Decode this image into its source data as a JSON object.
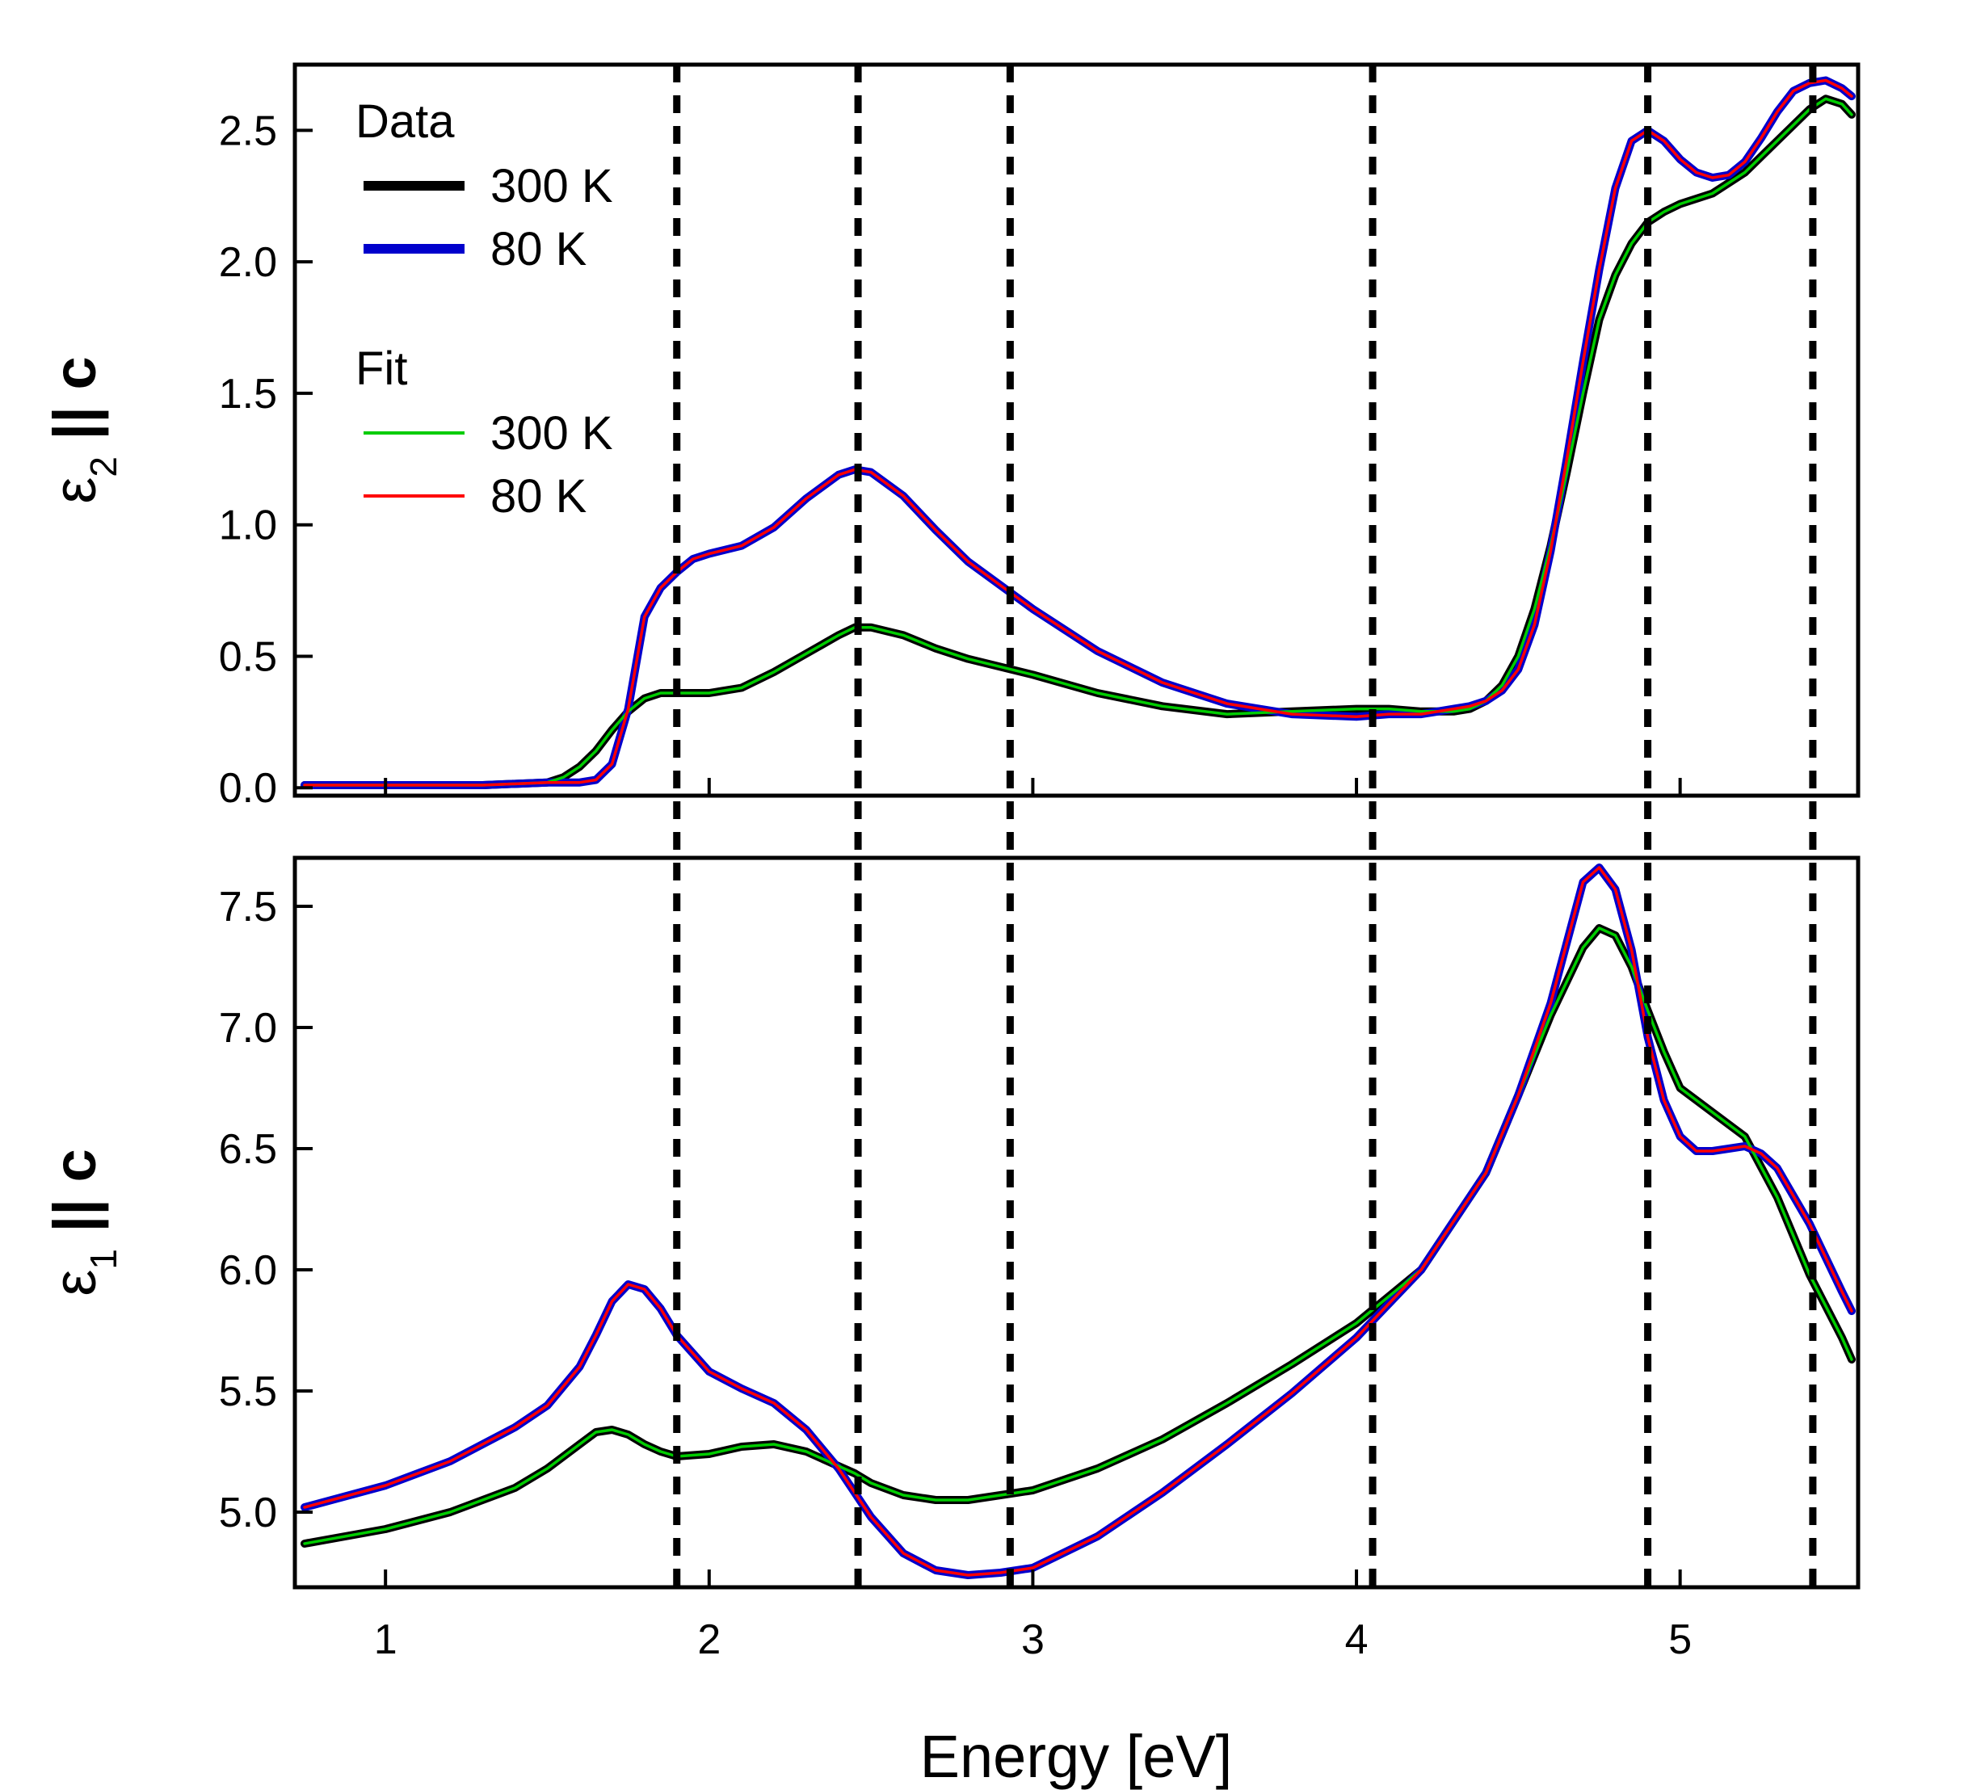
{
  "chart_data": [
    {
      "id": "top",
      "type": "line",
      "ylabel_symbol": "ε",
      "ylabel_sub": "2",
      "ylabel_rest": " || c",
      "xlim": [
        0.72,
        5.55
      ],
      "ylim": [
        -0.03,
        2.75
      ],
      "xticks": [
        1,
        2,
        3,
        4,
        5
      ],
      "xtick_labels_shown": false,
      "yticks": [
        0.0,
        0.5,
        1.0,
        1.5,
        2.0,
        2.5
      ],
      "ytick_labels": [
        "0.0",
        "0.5",
        "1.0",
        "1.5",
        "2.0",
        "2.5"
      ],
      "grid": false,
      "legend": {
        "placement": "top-left",
        "groups": [
          {
            "title": "Data",
            "entries": [
              {
                "label": "300 K",
                "color": "#000000",
                "style": "thick"
              },
              {
                "label": "80 K",
                "color": "#0000cc",
                "style": "thick"
              }
            ]
          },
          {
            "title": "Fit",
            "entries": [
              {
                "label": "300 K",
                "color": "#00cc00",
                "style": "thin"
              },
              {
                "label": "80 K",
                "color": "#ff0000",
                "style": "thin"
              }
            ]
          }
        ]
      },
      "series": [
        {
          "name": "Data 300 K",
          "color": "#000000",
          "role": "data",
          "x": [
            0.75,
            1.0,
            1.3,
            1.5,
            1.55,
            1.6,
            1.65,
            1.7,
            1.75,
            1.8,
            1.85,
            1.9,
            2.0,
            2.1,
            2.2,
            2.3,
            2.4,
            2.45,
            2.5,
            2.6,
            2.7,
            2.8,
            3.0,
            3.2,
            3.4,
            3.6,
            3.8,
            4.0,
            4.1,
            4.2,
            4.3,
            4.35,
            4.4,
            4.45,
            4.5,
            4.55,
            4.6,
            4.65,
            4.7,
            4.75,
            4.8,
            4.85,
            4.9,
            4.95,
            5.0,
            5.1,
            5.2,
            5.3,
            5.4,
            5.45,
            5.5,
            5.53
          ],
          "y": [
            0.01,
            0.01,
            0.01,
            0.02,
            0.04,
            0.08,
            0.14,
            0.22,
            0.29,
            0.34,
            0.36,
            0.36,
            0.36,
            0.38,
            0.44,
            0.51,
            0.58,
            0.61,
            0.61,
            0.58,
            0.53,
            0.49,
            0.43,
            0.36,
            0.31,
            0.28,
            0.29,
            0.3,
            0.3,
            0.29,
            0.29,
            0.3,
            0.33,
            0.39,
            0.5,
            0.68,
            0.92,
            1.2,
            1.5,
            1.78,
            1.95,
            2.07,
            2.15,
            2.19,
            2.22,
            2.26,
            2.34,
            2.46,
            2.58,
            2.62,
            2.6,
            2.56
          ]
        },
        {
          "name": "Data 80 K",
          "color": "#0000cc",
          "role": "data",
          "x": [
            0.75,
            1.0,
            1.3,
            1.5,
            1.55,
            1.6,
            1.65,
            1.7,
            1.75,
            1.8,
            1.85,
            1.9,
            1.95,
            2.0,
            2.1,
            2.2,
            2.3,
            2.4,
            2.45,
            2.5,
            2.6,
            2.7,
            2.8,
            3.0,
            3.2,
            3.4,
            3.6,
            3.8,
            4.0,
            4.1,
            4.2,
            4.3,
            4.35,
            4.4,
            4.45,
            4.5,
            4.55,
            4.6,
            4.65,
            4.7,
            4.75,
            4.8,
            4.85,
            4.9,
            4.95,
            5.0,
            5.05,
            5.1,
            5.15,
            5.2,
            5.25,
            5.3,
            5.35,
            5.4,
            5.45,
            5.5,
            5.53
          ],
          "y": [
            0.01,
            0.01,
            0.01,
            0.02,
            0.02,
            0.02,
            0.03,
            0.09,
            0.3,
            0.65,
            0.76,
            0.82,
            0.87,
            0.89,
            0.92,
            0.99,
            1.1,
            1.19,
            1.21,
            1.2,
            1.11,
            0.98,
            0.86,
            0.68,
            0.52,
            0.4,
            0.32,
            0.28,
            0.27,
            0.28,
            0.28,
            0.3,
            0.31,
            0.33,
            0.37,
            0.45,
            0.62,
            0.9,
            1.25,
            1.62,
            1.97,
            2.28,
            2.46,
            2.5,
            2.46,
            2.39,
            2.34,
            2.32,
            2.33,
            2.38,
            2.47,
            2.57,
            2.65,
            2.68,
            2.69,
            2.66,
            2.63
          ]
        },
        {
          "name": "Fit 300 K",
          "color": "#00cc00",
          "role": "fit",
          "x": [
            0.75,
            1.0,
            1.3,
            1.5,
            1.55,
            1.6,
            1.65,
            1.7,
            1.75,
            1.8,
            1.85,
            1.9,
            2.0,
            2.1,
            2.2,
            2.3,
            2.4,
            2.45,
            2.5,
            2.6,
            2.7,
            2.8,
            3.0,
            3.2,
            3.4,
            3.6,
            3.8,
            4.0,
            4.1,
            4.2,
            4.3,
            4.35,
            4.4,
            4.45,
            4.5,
            4.55,
            4.6,
            4.65,
            4.7,
            4.75,
            4.8,
            4.85,
            4.9,
            4.95,
            5.0,
            5.1,
            5.2,
            5.3,
            5.4,
            5.45,
            5.5,
            5.53
          ],
          "y": [
            0.01,
            0.01,
            0.01,
            0.02,
            0.04,
            0.08,
            0.14,
            0.22,
            0.29,
            0.34,
            0.36,
            0.36,
            0.36,
            0.38,
            0.44,
            0.51,
            0.58,
            0.61,
            0.61,
            0.58,
            0.53,
            0.49,
            0.43,
            0.36,
            0.31,
            0.28,
            0.29,
            0.3,
            0.3,
            0.29,
            0.29,
            0.3,
            0.33,
            0.39,
            0.5,
            0.68,
            0.92,
            1.2,
            1.5,
            1.78,
            1.95,
            2.07,
            2.15,
            2.19,
            2.22,
            2.26,
            2.34,
            2.46,
            2.58,
            2.62,
            2.6,
            2.56
          ]
        },
        {
          "name": "Fit 80 K",
          "color": "#ff0000",
          "role": "fit",
          "x": [
            0.75,
            1.0,
            1.3,
            1.5,
            1.55,
            1.6,
            1.65,
            1.7,
            1.75,
            1.8,
            1.85,
            1.9,
            1.95,
            2.0,
            2.1,
            2.2,
            2.3,
            2.4,
            2.45,
            2.5,
            2.6,
            2.7,
            2.8,
            3.0,
            3.2,
            3.4,
            3.6,
            3.8,
            4.0,
            4.1,
            4.2,
            4.3,
            4.35,
            4.4,
            4.45,
            4.5,
            4.55,
            4.6,
            4.65,
            4.7,
            4.75,
            4.8,
            4.85,
            4.9,
            4.95,
            5.0,
            5.05,
            5.1,
            5.15,
            5.2,
            5.25,
            5.3,
            5.35,
            5.4,
            5.45,
            5.5,
            5.53
          ],
          "y": [
            0.01,
            0.01,
            0.01,
            0.02,
            0.02,
            0.02,
            0.03,
            0.09,
            0.3,
            0.65,
            0.76,
            0.82,
            0.87,
            0.89,
            0.92,
            0.99,
            1.1,
            1.19,
            1.21,
            1.2,
            1.11,
            0.98,
            0.86,
            0.68,
            0.52,
            0.4,
            0.32,
            0.28,
            0.27,
            0.28,
            0.28,
            0.3,
            0.31,
            0.33,
            0.37,
            0.45,
            0.62,
            0.9,
            1.25,
            1.62,
            1.97,
            2.28,
            2.46,
            2.5,
            2.46,
            2.39,
            2.34,
            2.32,
            2.33,
            2.38,
            2.47,
            2.57,
            2.65,
            2.68,
            2.69,
            2.66,
            2.63
          ]
        }
      ]
    },
    {
      "id": "bottom",
      "type": "line",
      "xlabel": "Energy [eV]",
      "ylabel_symbol": "ε",
      "ylabel_sub": "1",
      "ylabel_rest": " || c",
      "xlim": [
        0.72,
        5.55
      ],
      "ylim": [
        4.69,
        7.7
      ],
      "xticks": [
        1,
        2,
        3,
        4,
        5
      ],
      "xtick_labels": [
        "1",
        "2",
        "3",
        "4",
        "5"
      ],
      "yticks": [
        5.0,
        5.5,
        6.0,
        6.5,
        7.0,
        7.5
      ],
      "ytick_labels": [
        "5.0",
        "5.5",
        "6.0",
        "6.5",
        "7.0",
        "7.5"
      ],
      "grid": false,
      "series": [
        {
          "name": "Data 300 K",
          "color": "#000000",
          "role": "data",
          "x": [
            0.75,
            1.0,
            1.2,
            1.4,
            1.5,
            1.6,
            1.65,
            1.7,
            1.75,
            1.8,
            1.85,
            1.9,
            2.0,
            2.1,
            2.2,
            2.3,
            2.4,
            2.45,
            2.5,
            2.6,
            2.7,
            2.8,
            2.9,
            3.0,
            3.2,
            3.4,
            3.6,
            3.8,
            4.0,
            4.2,
            4.4,
            4.5,
            4.6,
            4.7,
            4.75,
            4.8,
            4.85,
            4.9,
            4.95,
            5.0,
            5.1,
            5.2,
            5.3,
            5.4,
            5.5,
            5.53
          ],
          "y": [
            4.87,
            4.93,
            5.0,
            5.1,
            5.18,
            5.28,
            5.33,
            5.34,
            5.32,
            5.28,
            5.25,
            5.23,
            5.24,
            5.27,
            5.28,
            5.25,
            5.19,
            5.16,
            5.12,
            5.07,
            5.05,
            5.05,
            5.07,
            5.09,
            5.18,
            5.3,
            5.45,
            5.61,
            5.78,
            6.0,
            6.4,
            6.72,
            7.05,
            7.33,
            7.41,
            7.38,
            7.25,
            7.07,
            6.9,
            6.75,
            6.65,
            6.55,
            6.3,
            5.98,
            5.72,
            5.63
          ]
        },
        {
          "name": "Data 80 K",
          "color": "#0000cc",
          "role": "data",
          "x": [
            0.75,
            1.0,
            1.2,
            1.4,
            1.5,
            1.6,
            1.65,
            1.7,
            1.75,
            1.8,
            1.85,
            1.9,
            2.0,
            2.1,
            2.2,
            2.3,
            2.4,
            2.45,
            2.5,
            2.6,
            2.7,
            2.8,
            2.9,
            3.0,
            3.2,
            3.4,
            3.6,
            3.8,
            4.0,
            4.2,
            4.4,
            4.5,
            4.6,
            4.65,
            4.7,
            4.75,
            4.8,
            4.85,
            4.9,
            4.95,
            5.0,
            5.05,
            5.1,
            5.15,
            5.2,
            5.25,
            5.3,
            5.4,
            5.5,
            5.53
          ],
          "y": [
            5.02,
            5.11,
            5.21,
            5.35,
            5.44,
            5.6,
            5.73,
            5.87,
            5.94,
            5.92,
            5.84,
            5.73,
            5.58,
            5.51,
            5.45,
            5.34,
            5.18,
            5.08,
            4.98,
            4.83,
            4.76,
            4.74,
            4.75,
            4.77,
            4.9,
            5.08,
            5.28,
            5.49,
            5.72,
            6.0,
            6.4,
            6.72,
            7.1,
            7.35,
            7.6,
            7.66,
            7.57,
            7.32,
            6.96,
            6.7,
            6.55,
            6.49,
            6.49,
            6.5,
            6.51,
            6.48,
            6.42,
            6.19,
            5.91,
            5.83
          ]
        },
        {
          "name": "Fit 300 K",
          "color": "#00cc00",
          "role": "fit",
          "x": [
            0.75,
            1.0,
            1.2,
            1.4,
            1.5,
            1.6,
            1.65,
            1.7,
            1.75,
            1.8,
            1.85,
            1.9,
            2.0,
            2.1,
            2.2,
            2.3,
            2.4,
            2.45,
            2.5,
            2.6,
            2.7,
            2.8,
            2.9,
            3.0,
            3.2,
            3.4,
            3.6,
            3.8,
            4.0,
            4.2,
            4.4,
            4.5,
            4.6,
            4.7,
            4.75,
            4.8,
            4.85,
            4.9,
            4.95,
            5.0,
            5.1,
            5.2,
            5.3,
            5.4,
            5.5,
            5.53
          ],
          "y": [
            4.87,
            4.93,
            5.0,
            5.1,
            5.18,
            5.28,
            5.33,
            5.34,
            5.32,
            5.28,
            5.25,
            5.23,
            5.24,
            5.27,
            5.28,
            5.25,
            5.19,
            5.16,
            5.12,
            5.07,
            5.05,
            5.05,
            5.07,
            5.09,
            5.18,
            5.3,
            5.45,
            5.61,
            5.78,
            6.0,
            6.4,
            6.72,
            7.05,
            7.33,
            7.41,
            7.38,
            7.25,
            7.07,
            6.9,
            6.75,
            6.65,
            6.55,
            6.3,
            5.98,
            5.72,
            5.63
          ]
        },
        {
          "name": "Fit 80 K",
          "color": "#ff0000",
          "role": "fit",
          "x": [
            0.75,
            1.0,
            1.2,
            1.4,
            1.5,
            1.6,
            1.65,
            1.7,
            1.75,
            1.8,
            1.85,
            1.9,
            2.0,
            2.1,
            2.2,
            2.3,
            2.4,
            2.45,
            2.5,
            2.6,
            2.7,
            2.8,
            2.9,
            3.0,
            3.2,
            3.4,
            3.6,
            3.8,
            4.0,
            4.2,
            4.4,
            4.5,
            4.6,
            4.65,
            4.7,
            4.75,
            4.8,
            4.85,
            4.9,
            4.95,
            5.0,
            5.05,
            5.1,
            5.15,
            5.2,
            5.25,
            5.3,
            5.4,
            5.5,
            5.53
          ],
          "y": [
            5.02,
            5.11,
            5.21,
            5.35,
            5.44,
            5.6,
            5.73,
            5.87,
            5.94,
            5.92,
            5.84,
            5.73,
            5.58,
            5.51,
            5.45,
            5.34,
            5.18,
            5.08,
            4.98,
            4.83,
            4.76,
            4.74,
            4.75,
            4.77,
            4.9,
            5.08,
            5.28,
            5.49,
            5.72,
            6.0,
            6.4,
            6.72,
            7.1,
            7.35,
            7.6,
            7.66,
            7.57,
            7.32,
            6.96,
            6.7,
            6.55,
            6.49,
            6.49,
            6.5,
            6.51,
            6.48,
            6.42,
            6.19,
            5.91,
            5.83
          ]
        }
      ]
    }
  ],
  "reference_lines": {
    "style": "dashed",
    "color": "#000000",
    "x": [
      1.9,
      2.46,
      2.93,
      4.05,
      4.9,
      5.41
    ]
  }
}
